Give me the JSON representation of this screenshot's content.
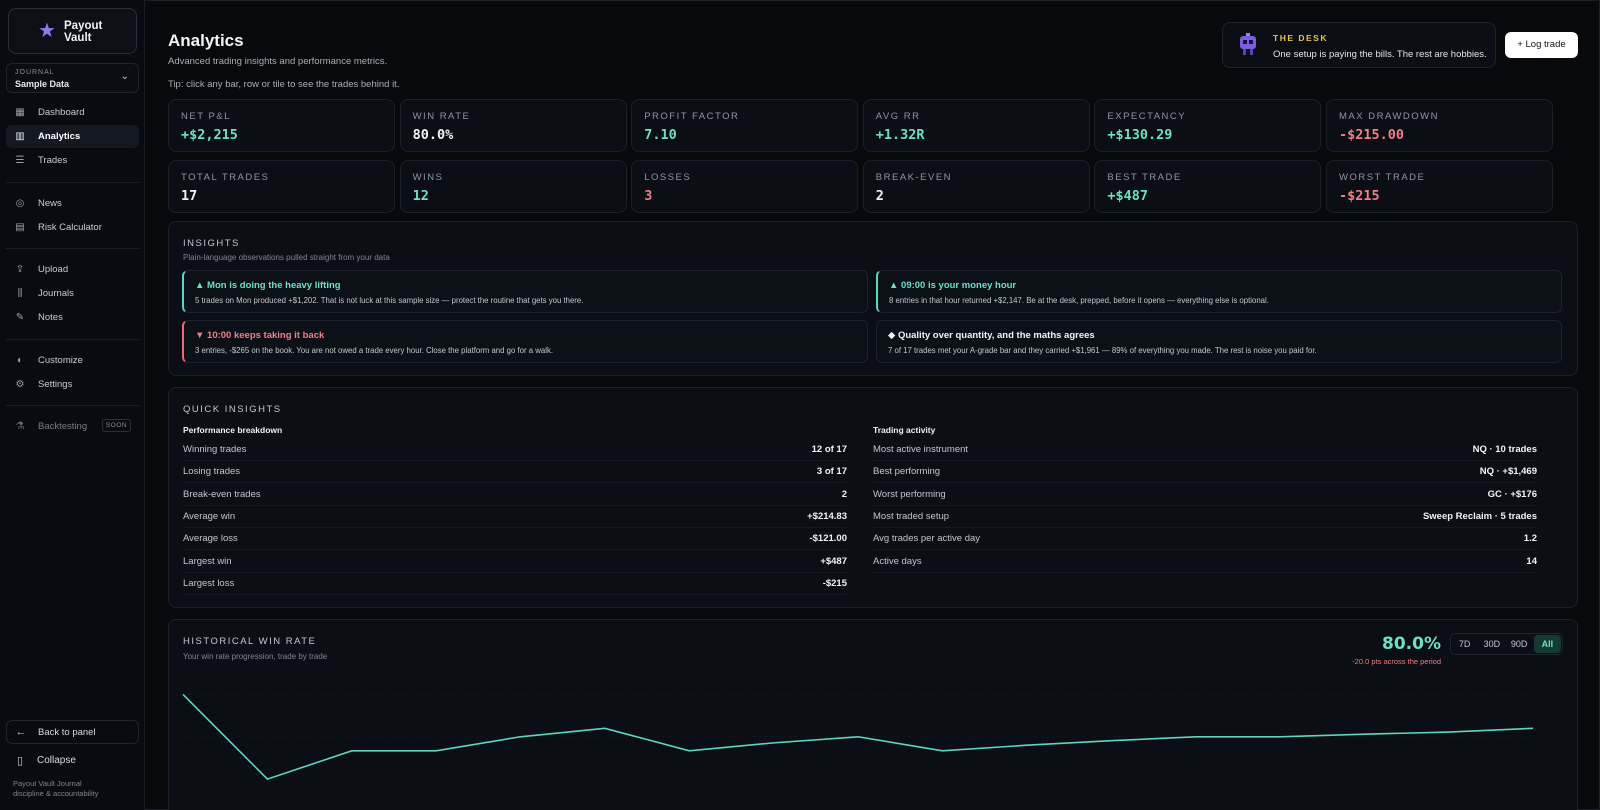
{
  "brand": {
    "name": "Payout Vault"
  },
  "journal": {
    "label": "JOURNAL",
    "value": "Sample Data"
  },
  "nav": {
    "dashboard": "Dashboard",
    "analytics": "Analytics",
    "trades": "Trades",
    "news": "News",
    "risk": "Risk Calculator",
    "upload": "Upload",
    "journals": "Journals",
    "notes": "Notes",
    "customize": "Customize",
    "settings": "Settings",
    "backtesting": "Backtesting",
    "soon": "SOON",
    "back": "Back to panel",
    "collapse": "Collapse",
    "footer_1": "Payout Vault Journal",
    "footer_2": "discipline & accountability"
  },
  "header": {
    "title": "Analytics",
    "subtitle": "Advanced trading insights and performance metrics.",
    "tip": "Tip: click any bar, row or tile to see the trades behind it."
  },
  "desk": {
    "label": "THE DESK",
    "text": "One setup is paying the bills. The rest are hobbies."
  },
  "log_trade": "+ Log trade",
  "stats": [
    {
      "label": "NET P&L",
      "value": "+$2,215",
      "tone": "pos"
    },
    {
      "label": "WIN RATE",
      "value": "80.0%",
      "tone": ""
    },
    {
      "label": "PROFIT FACTOR",
      "value": "7.10",
      "tone": "pos"
    },
    {
      "label": "AVG RR",
      "value": "+1.32R",
      "tone": "pos"
    },
    {
      "label": "EXPECTANCY",
      "value": "+$130.29",
      "tone": "pos"
    },
    {
      "label": "MAX DRAWDOWN",
      "value": "-$215.00",
      "tone": "neg"
    },
    {
      "label": "TOTAL TRADES",
      "value": "17",
      "tone": ""
    },
    {
      "label": "WINS",
      "value": "12",
      "tone": "pos"
    },
    {
      "label": "LOSSES",
      "value": "3",
      "tone": "neg"
    },
    {
      "label": "BREAK-EVEN",
      "value": "2",
      "tone": ""
    },
    {
      "label": "BEST TRADE",
      "value": "+$487",
      "tone": "pos"
    },
    {
      "label": "WORST TRADE",
      "value": "-$215",
      "tone": "neg"
    }
  ],
  "insights": {
    "title": "INSIGHTS",
    "subtitle": "Plain-language observations pulled straight from your data",
    "items": [
      {
        "heading": "▲ Mon is doing the heavy lifting",
        "body": "5 trades on Mon produced +$1,202. That is not luck at this sample size — protect the routine that gets you there."
      },
      {
        "heading": "▲ 09:00 is your money hour",
        "body": "8 entries in that hour returned +$2,147. Be at the desk, prepped, before it opens — everything else is optional."
      },
      {
        "heading": "▼ 10:00 keeps taking it back",
        "body": "3 entries, -$265 on the book. You are not owed a trade every hour. Close the platform and go for a walk."
      },
      {
        "heading": "◆ Quality over quantity, and the maths agrees",
        "body": "7 of 17 trades met your A-grade bar and they carried +$1,961 — 89% of everything you made. The rest is noise you paid for."
      }
    ]
  },
  "quick": {
    "title": "QUICK INSIGHTS",
    "performance_title": "Performance breakdown",
    "performance": [
      {
        "label": "Winning trades",
        "value": "12 of 17"
      },
      {
        "label": "Losing trades",
        "value": "3 of 17"
      },
      {
        "label": "Break-even trades",
        "value": "2"
      },
      {
        "label": "Average win",
        "value": "+$214.83"
      },
      {
        "label": "Average loss",
        "value": "-$121.00"
      },
      {
        "label": "Largest win",
        "value": "+$487"
      },
      {
        "label": "Largest loss",
        "value": "-$215"
      }
    ],
    "activity_title": "Trading activity",
    "activity": [
      {
        "label": "Most active instrument",
        "value": "NQ · 10 trades"
      },
      {
        "label": "Best performing",
        "value": "NQ · +$1,469"
      },
      {
        "label": "Worst performing",
        "value": "GC · +$176"
      },
      {
        "label": "Most traded setup",
        "value": "Sweep Reclaim · 5 trades"
      },
      {
        "label": "Avg trades per active day",
        "value": "1.2"
      },
      {
        "label": "Active days",
        "value": "14"
      }
    ]
  },
  "historical": {
    "title": "HISTORICAL WIN RATE",
    "subtitle": "Your win rate progression, trade by trade",
    "value": "80.0%",
    "delta": "-20.0 pts across the period",
    "ranges": [
      "7D",
      "30D",
      "90D",
      "All"
    ],
    "active_range": "All"
  },
  "chart_data": {
    "type": "line",
    "x": [
      1,
      2,
      3,
      4,
      5,
      6,
      7,
      8,
      9,
      10,
      11,
      12,
      13,
      14,
      15,
      16,
      17
    ],
    "series": [
      {
        "values": [
          100,
          50,
          66.7,
          66.7,
          75,
          80,
          66.7,
          71.4,
          75,
          66.7,
          70,
          72.7,
          75,
          75,
          76.5,
          77.8,
          80
        ]
      }
    ],
    "ylim": [
      40,
      105
    ],
    "color": "#5fd6b8"
  }
}
